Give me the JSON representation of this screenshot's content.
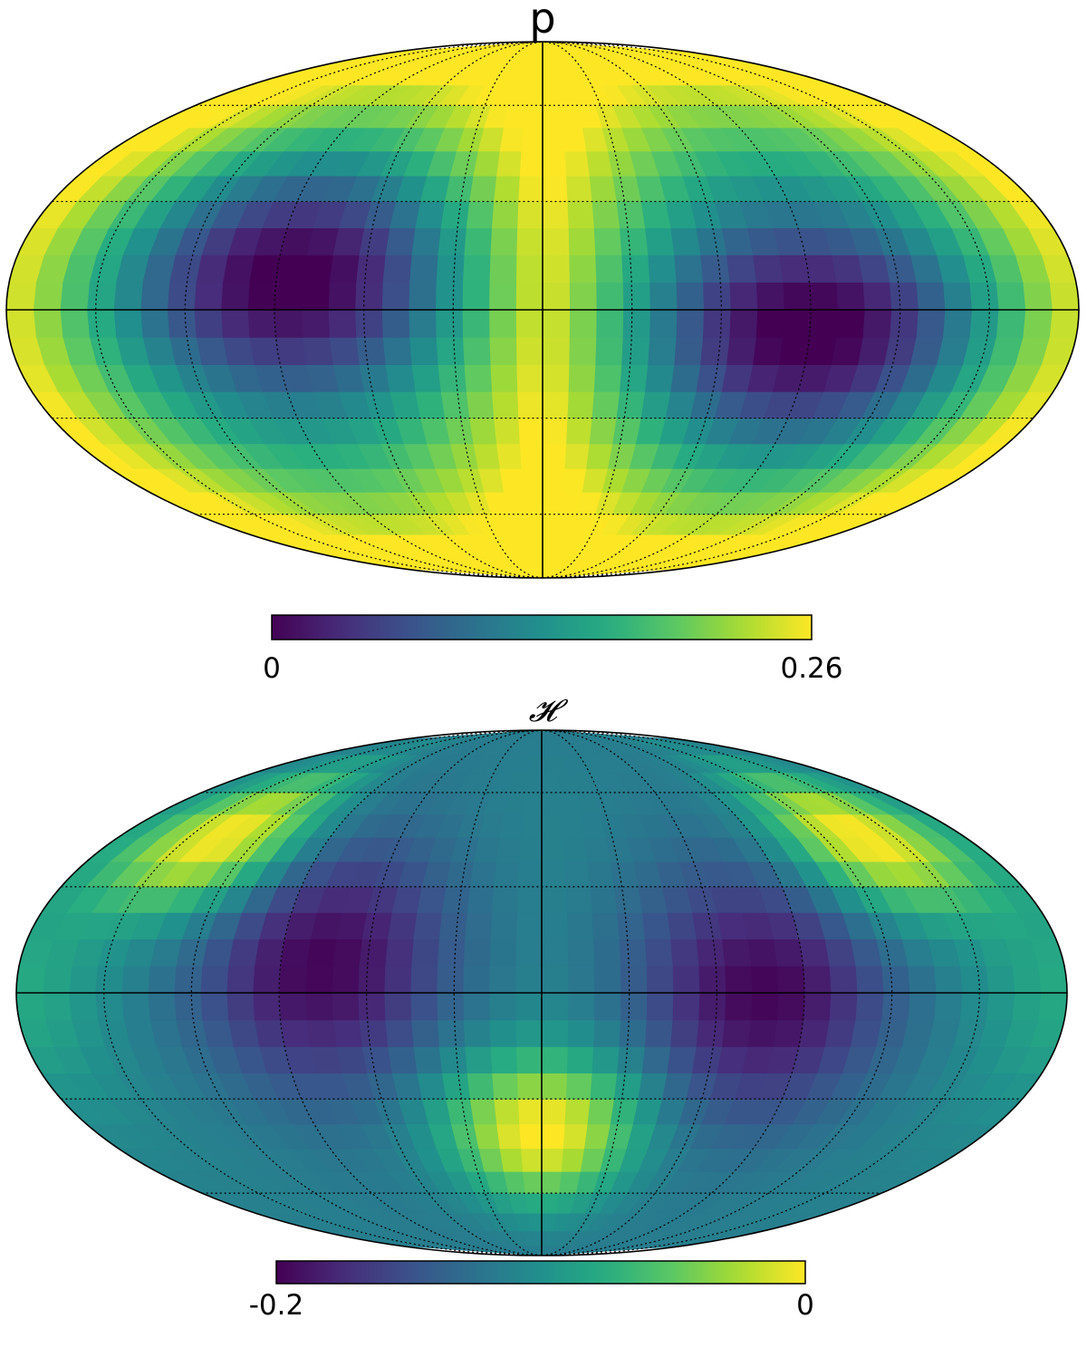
{
  "chart_data": [
    {
      "type": "heatmap",
      "projection": "mollweide",
      "title": "p",
      "colormap": "viridis",
      "colorbar": {
        "min": 0,
        "max": 0.26,
        "tick_labels": [
          "0",
          "0.26"
        ]
      },
      "graticule": {
        "meridian_step_deg": 30,
        "parallel_step_deg": 30,
        "style": "dotted"
      },
      "pattern": "quadrupole-like polarization fraction: high (yellow) along central meridian and at longitude ±180°, minima (dark purple) near longitude +90° (upper-left) and -90° (lower-right)",
      "colors": {
        "low": "#440154",
        "mid": "#21918c",
        "high": "#fde725"
      }
    },
    {
      "type": "heatmap",
      "projection": "mollweide",
      "title": "𝓗",
      "colormap": "viridis",
      "colorbar": {
        "min": -0.2,
        "max": 0,
        "tick_labels": [
          "-0.2",
          "0"
        ]
      },
      "graticule": {
        "meridian_step_deg": 30,
        "parallel_step_deg": 30,
        "style": "dotted"
      },
      "pattern": "minima (dark purple) near longitude ±90° on the equator, maxima (yellow) near the southern central meridian and northern far-side regions",
      "colors": {
        "low": "#440154",
        "mid": "#21918c",
        "high": "#fde725"
      }
    }
  ]
}
